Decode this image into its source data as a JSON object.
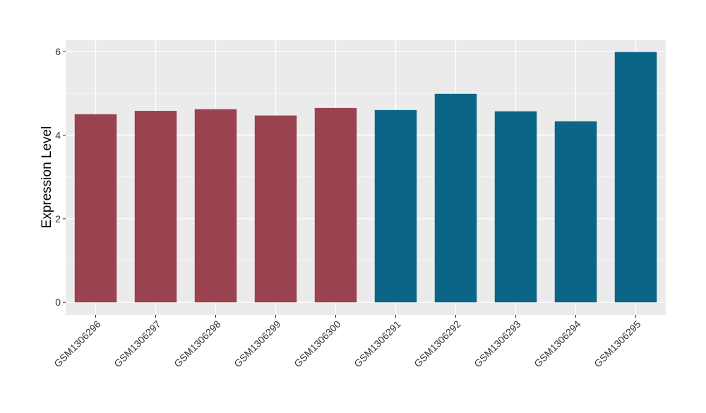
{
  "chart_data": {
    "type": "bar",
    "title": "",
    "xlabel": "",
    "ylabel": "Expression Level",
    "ylim": [
      -0.3,
      6.27
    ],
    "yticks": [
      0,
      2,
      4,
      6
    ],
    "grid": true,
    "categories": [
      "GSM1306296",
      "GSM1306297",
      "GSM1306298",
      "GSM1306299",
      "GSM1306300",
      "GSM1306291",
      "GSM1306292",
      "GSM1306293",
      "GSM1306294",
      "GSM1306295"
    ],
    "values": [
      4.5,
      4.58,
      4.62,
      4.47,
      4.65,
      4.6,
      4.99,
      4.57,
      4.33,
      5.99
    ],
    "bar_colors": [
      "#9A4250",
      "#9A4250",
      "#9A4250",
      "#9A4250",
      "#9A4250",
      "#0B6586",
      "#0B6586",
      "#0B6586",
      "#0B6586",
      "#0B6586"
    ],
    "panel_background": "#EBEBEB"
  }
}
